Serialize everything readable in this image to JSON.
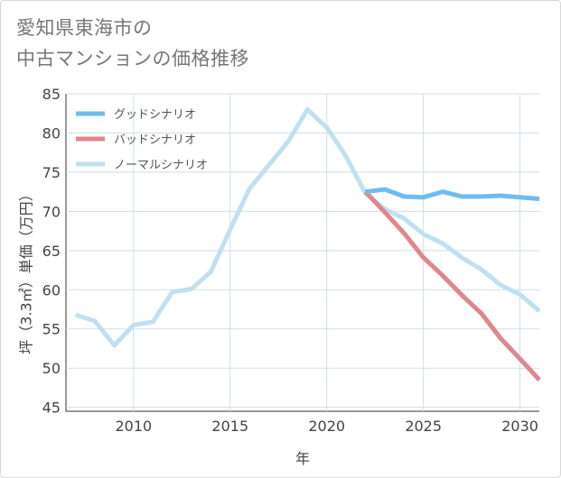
{
  "title": {
    "line1": "愛知県東海市の",
    "line2": "中古マンションの価格推移"
  },
  "chart_data": {
    "type": "line",
    "xlabel": "年",
    "ylabel": "坪（3.3㎡）単価（万円）",
    "xlim": [
      2006.5,
      2031
    ],
    "ylim": [
      44.5,
      85
    ],
    "xticks": [
      2010,
      2015,
      2020,
      2025,
      2030
    ],
    "yticks": [
      45,
      50,
      55,
      60,
      65,
      70,
      75,
      80,
      85
    ],
    "grid": true,
    "legend_position": "top-left",
    "series": [
      {
        "name": "グッドシナリオ",
        "color": "#6cbdf0",
        "x": [
          2022,
          2023,
          2024,
          2025,
          2026,
          2027,
          2028,
          2029,
          2030,
          2031
        ],
        "y": [
          72.5,
          72.8,
          71.9,
          71.8,
          72.5,
          71.9,
          71.9,
          72.0,
          71.8,
          71.6
        ]
      },
      {
        "name": "バッドシナリオ",
        "color": "#e0868c",
        "x": [
          2022,
          2023,
          2024,
          2025,
          2026,
          2027,
          2028,
          2029,
          2030,
          2031
        ],
        "y": [
          72.5,
          69.9,
          67.2,
          64.1,
          61.8,
          59.3,
          57.0,
          53.8,
          51.2,
          48.5
        ]
      },
      {
        "name": "ノーマルシナリオ",
        "color": "#c0e0f0",
        "x": [
          2007,
          2008,
          2009,
          2010,
          2011,
          2012,
          2013,
          2014,
          2015,
          2016,
          2017,
          2018,
          2019,
          2020,
          2021,
          2022,
          2023,
          2024,
          2025,
          2026,
          2027,
          2028,
          2029,
          2030,
          2031
        ],
        "y": [
          56.8,
          56.0,
          52.9,
          55.5,
          55.9,
          59.7,
          60.1,
          62.3,
          67.7,
          72.9,
          75.9,
          78.9,
          83.0,
          80.7,
          77.0,
          72.3,
          70.3,
          69.1,
          67.1,
          65.9,
          64.1,
          62.6,
          60.6,
          59.4,
          57.3
        ]
      }
    ]
  }
}
